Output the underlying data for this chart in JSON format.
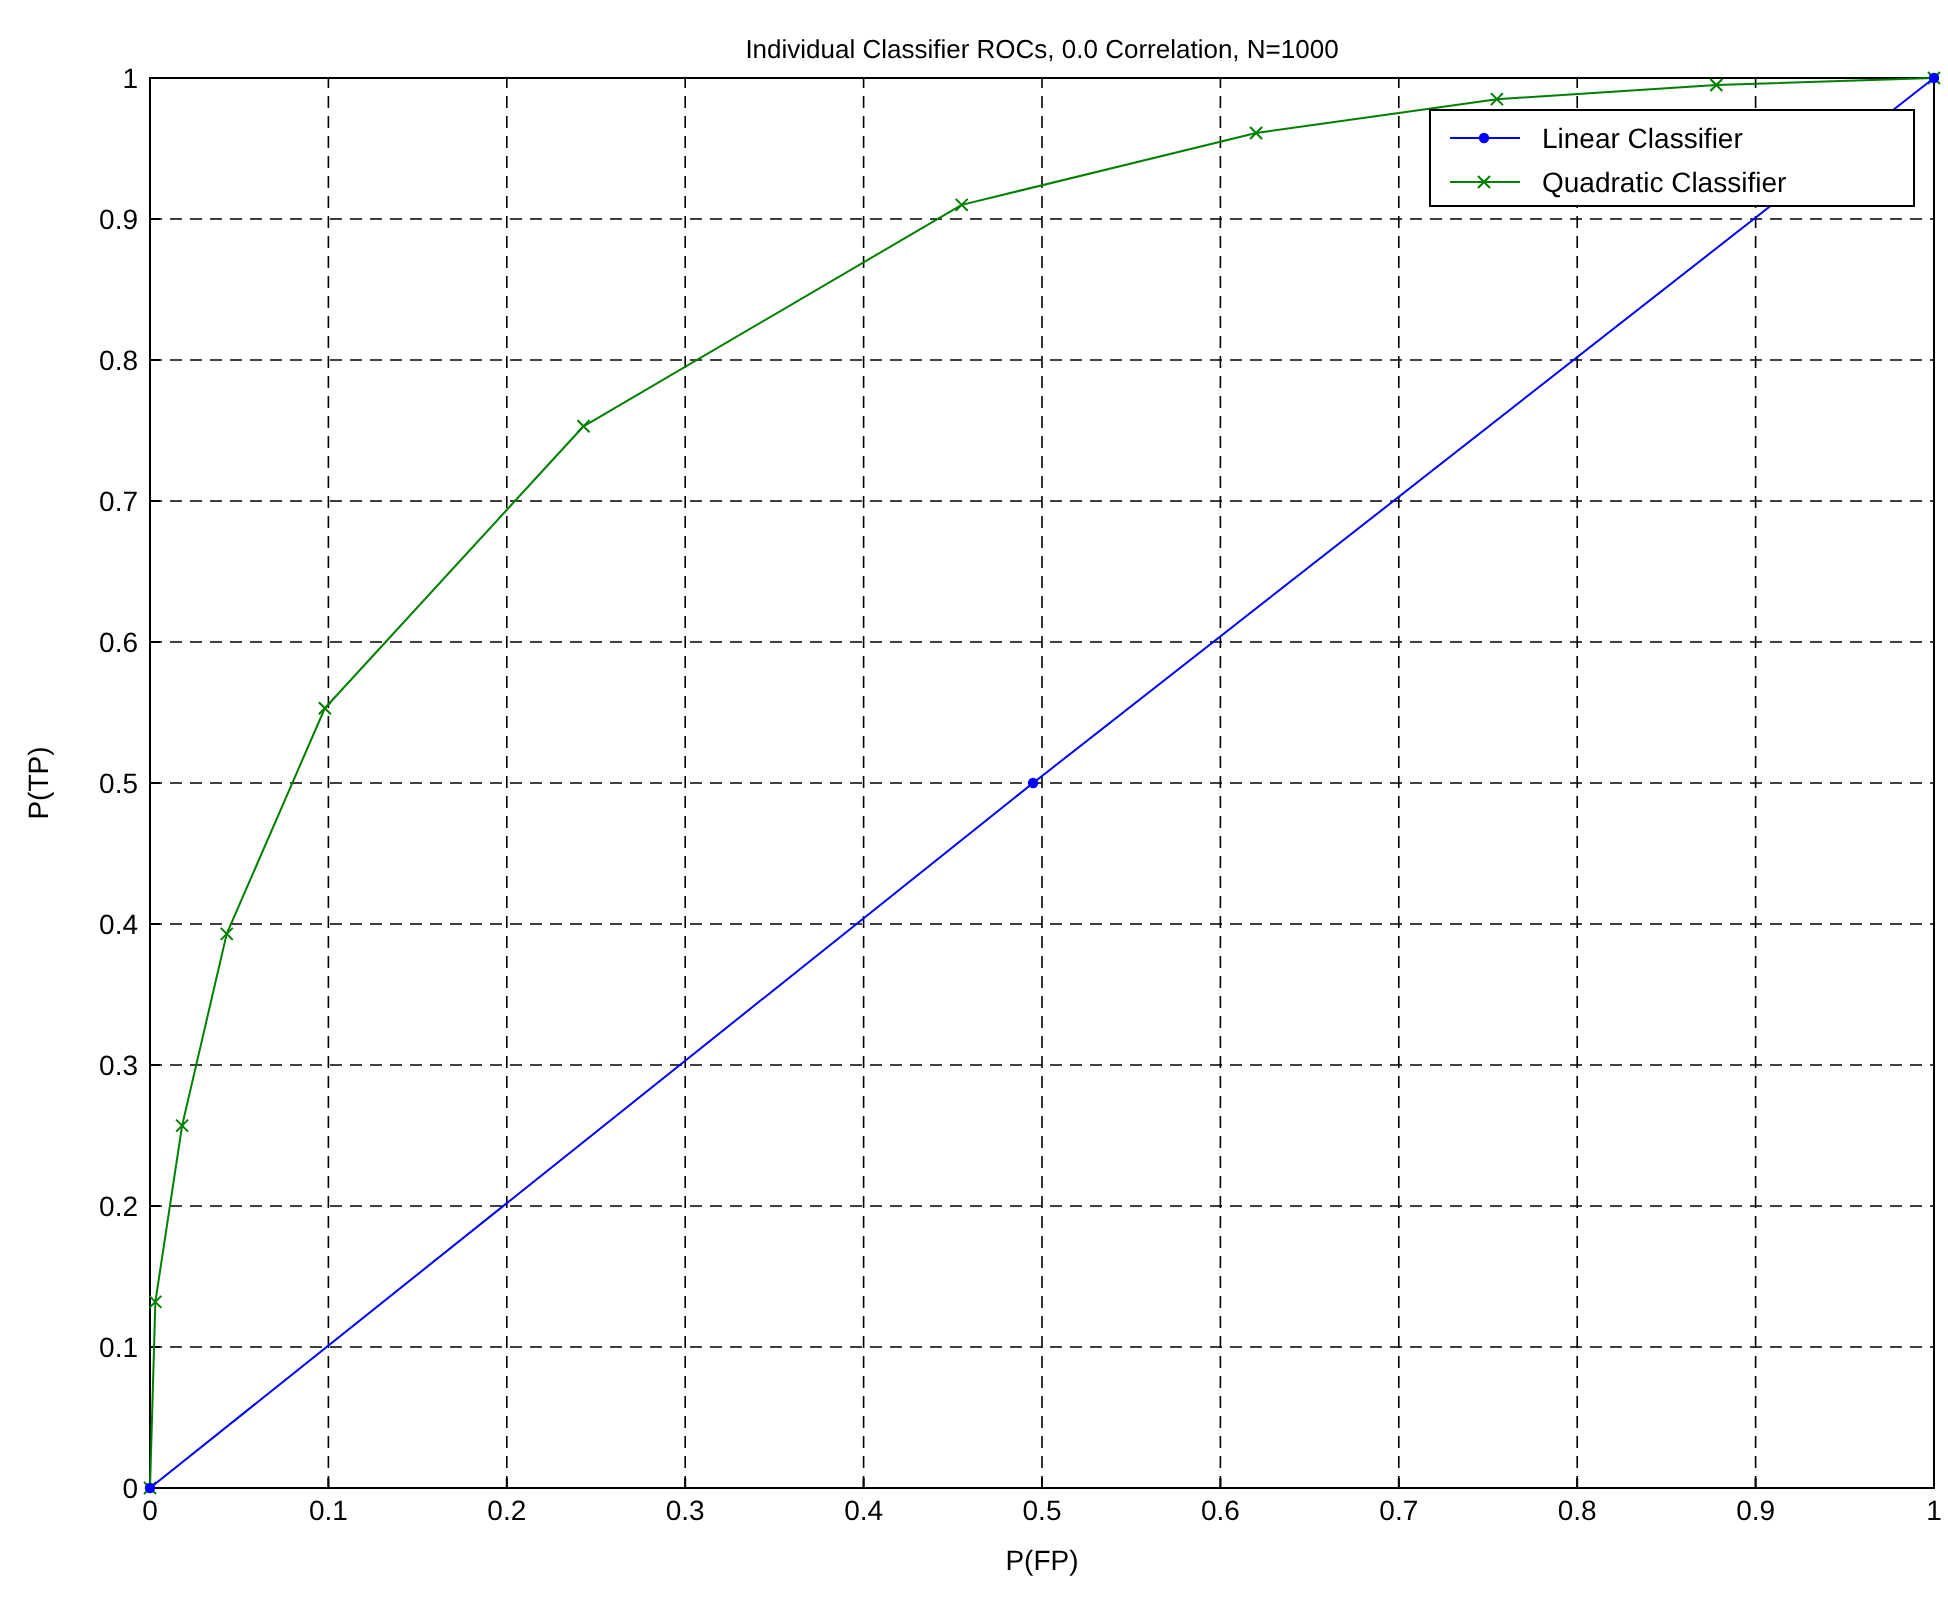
{
  "chart_data": {
    "type": "line",
    "title": "Individual Classifier ROCs, 0.0 Correlation, N=1000",
    "xlabel": "P(FP)",
    "ylabel": "P(TP)",
    "xlim": [
      0,
      1
    ],
    "xticks": [
      0,
      0.1,
      0.2,
      0.3,
      0.4,
      0.5,
      0.6,
      0.7,
      0.8,
      0.9,
      1
    ],
    "ylim": [
      0,
      1
    ],
    "yticks": [
      0,
      0.1,
      0.2,
      0.3,
      0.4,
      0.5,
      0.6,
      0.7,
      0.8,
      0.9,
      1
    ],
    "grid": true,
    "legend": "top right",
    "line_style": "solid",
    "series": [
      {
        "name": "Linear Classifier",
        "color": "#0000ff",
        "marker": "circle",
        "x": [
          0,
          0.495,
          1
        ],
        "values": [
          0,
          0.5,
          1
        ]
      },
      {
        "name": "Quadratic Classifier",
        "color": "#008000",
        "marker": "cross",
        "x": [
          0,
          0.003,
          0.018,
          0.043,
          0.098,
          0.243,
          0.455,
          0.62,
          0.755,
          0.878,
          1
        ],
        "values": [
          0,
          0.132,
          0.257,
          0.393,
          0.553,
          0.753,
          0.91,
          0.961,
          0.985,
          0.995,
          1
        ]
      }
    ]
  }
}
